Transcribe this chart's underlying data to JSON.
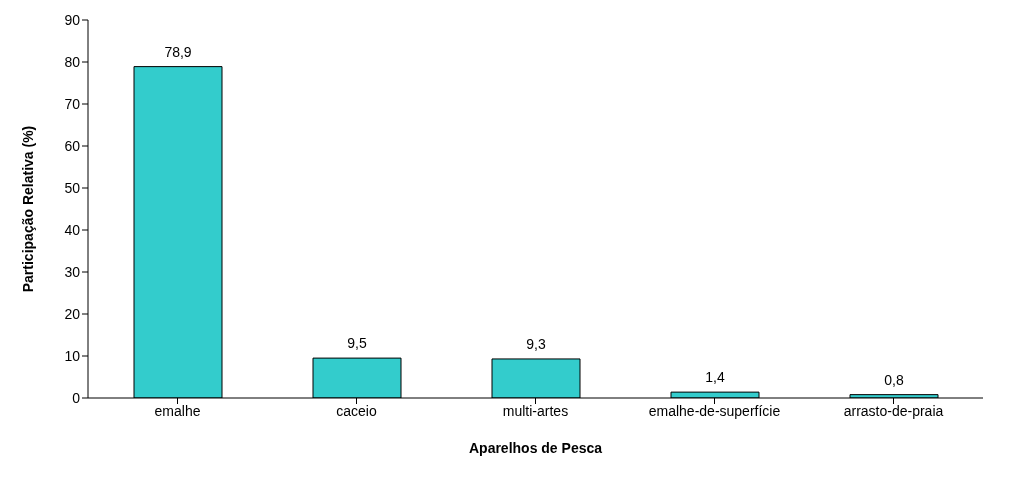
{
  "chart_data": {
    "type": "bar",
    "xlabel": "Aparelhos de Pesca",
    "ylabel": "Participação Relativa (%)",
    "categories": [
      "emalhe",
      "caceio",
      "multi-artes",
      "emalhe-de-superfície",
      "arrasto-de-praia"
    ],
    "values": [
      78.9,
      9.5,
      9.3,
      1.4,
      0.8
    ],
    "value_labels": [
      "78,9",
      "9,5",
      "9,3",
      "1,4",
      "0,8"
    ],
    "color": "#33cccc",
    "ylim": [
      0,
      90
    ],
    "yticks": [
      0,
      10,
      20,
      30,
      40,
      50,
      60,
      70,
      80,
      90
    ],
    "grid": false,
    "legend": false
  }
}
